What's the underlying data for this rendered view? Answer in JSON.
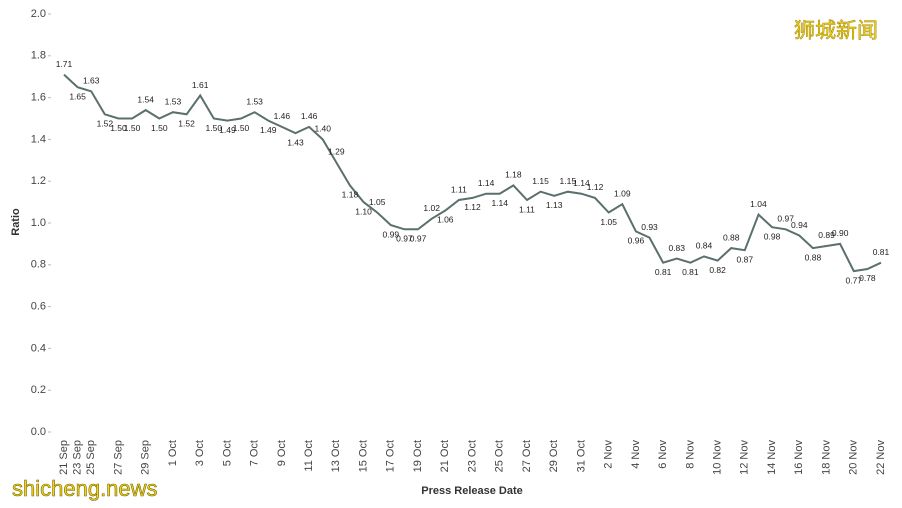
{
  "chart_data": {
    "type": "line",
    "x_label": "Press Release Date",
    "y_label": "Ratio",
    "watermarks": [
      "狮城新闻",
      "shicheng.news"
    ],
    "categories": [
      "21 Sep",
      "23 Sep",
      "25 Sep",
      null,
      "27 Sep",
      null,
      "29 Sep",
      null,
      "1 Oct",
      null,
      "3 Oct",
      null,
      "5 Oct",
      null,
      "7 Oct",
      null,
      "9 Oct",
      null,
      "11 Oct",
      null,
      "13 Oct",
      null,
      "15 Oct",
      null,
      "17 Oct",
      null,
      "19 Oct",
      null,
      "21 Oct",
      null,
      "23 Oct",
      null,
      "25 Oct",
      null,
      "27 Oct",
      null,
      "29 Oct",
      null,
      "31 Oct",
      null,
      "2 Nov",
      null,
      "4 Nov",
      null,
      "6 Nov",
      null,
      "8 Nov",
      null,
      "10 Nov",
      null,
      "12 Nov",
      null,
      "14 Nov",
      null,
      "16 Nov",
      null,
      "18 Nov",
      null,
      "20 Nov",
      null,
      "22 Nov"
    ],
    "series": [
      {
        "name": "Ratio",
        "color": "#5b6f6e",
        "values": [
          1.71,
          1.65,
          1.63,
          1.52,
          1.5,
          1.5,
          1.54,
          1.5,
          1.53,
          1.52,
          1.61,
          1.5,
          1.49,
          1.5,
          1.53,
          1.49,
          1.46,
          1.43,
          1.46,
          1.4,
          1.29,
          1.18,
          1.1,
          1.05,
          0.99,
          0.97,
          0.97,
          1.02,
          1.06,
          1.11,
          1.12,
          1.14,
          1.14,
          1.18,
          1.11,
          1.15,
          1.13,
          1.15,
          1.14,
          1.12,
          1.05,
          1.09,
          0.96,
          0.93,
          0.81,
          0.83,
          0.81,
          0.84,
          0.82,
          0.88,
          0.87,
          1.04,
          0.98,
          0.97,
          0.94,
          0.88,
          0.89,
          0.9,
          0.77,
          0.78,
          0.81
        ],
        "value_labels": [
          "1.71",
          "1.65",
          "1.63",
          "1.52",
          "1.50",
          "1.50",
          "1.54",
          "1.50",
          "1.53",
          "1.52",
          "1.61",
          "1.50",
          "1.49",
          "1.50",
          "1.53",
          "1.49",
          "1.46",
          "1.43",
          "1.46",
          "1.40",
          "1.29",
          "1.18",
          "1.10",
          "1.05",
          "0.99",
          "0.97",
          "0.97",
          "1.02",
          "1.06",
          "1.11",
          "1.12",
          "1.14",
          "1.14",
          "1.18",
          "1.11",
          "1.15",
          "1.13",
          "1.15",
          "1.14",
          "1.12",
          "1.05",
          "1.09",
          "0.96",
          "0.93",
          "0.81",
          "0.83",
          "0.81",
          "0.84",
          "0.82",
          "0.88",
          "0.87",
          "1.04",
          "0.98",
          "0.97",
          "0.94",
          "0.88",
          "0.89",
          "0.90",
          "0.77",
          "0.78",
          "0.81"
        ]
      }
    ],
    "ylim": [
      0,
      2
    ],
    "yticks": [
      {
        "value": 0,
        "label": "0.0"
      },
      0.2,
      0.4,
      0.6,
      0.8,
      {
        "value": 1,
        "label": "1.0"
      },
      1.2,
      1.4,
      1.6,
      1.8,
      {
        "value": 2,
        "label": "2.0"
      }
    ],
    "grid": false
  }
}
